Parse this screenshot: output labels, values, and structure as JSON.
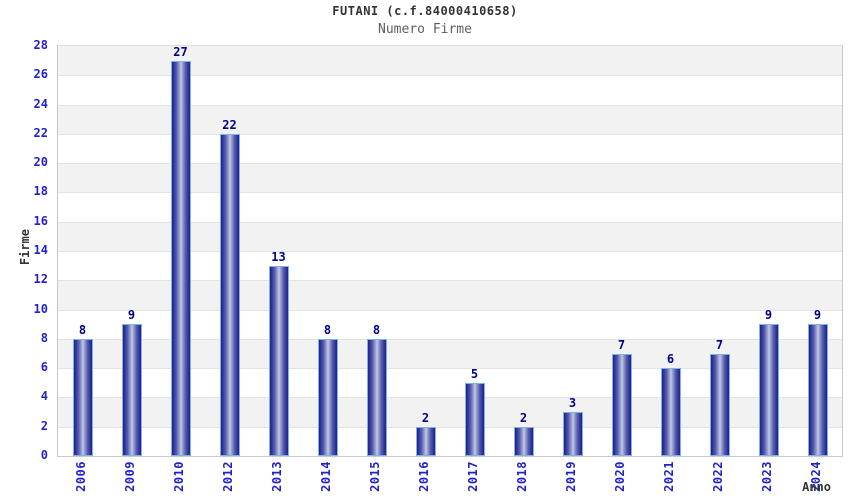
{
  "chart_data": {
    "type": "bar",
    "title": "FUTANI (c.f.84000410658)",
    "subtitle": "Numero Firme",
    "xlabel": "Anno",
    "ylabel": "Firme",
    "categories": [
      "2006",
      "2009",
      "2010",
      "2012",
      "2013",
      "2014",
      "2015",
      "2016",
      "2017",
      "2018",
      "2019",
      "2020",
      "2021",
      "2022",
      "2023",
      "2024"
    ],
    "values": [
      8,
      9,
      27,
      22,
      13,
      8,
      8,
      2,
      5,
      2,
      3,
      7,
      6,
      7,
      9,
      9
    ],
    "ylim": [
      0,
      28
    ],
    "ytick_step": 2,
    "yticks": [
      0,
      2,
      4,
      6,
      8,
      10,
      12,
      14,
      16,
      18,
      20,
      22,
      24,
      26,
      28
    ],
    "legend": "none",
    "grid": "horizontal-bands-alternating",
    "colors": {
      "background": "#ffffff",
      "band_fill": "#f2f2f2",
      "gridline": "#e3e3e3",
      "plot_border": "#c9c9c9",
      "tick_label": "#2222cc",
      "value_label": "#00008b",
      "bar_border": "#7db3e8",
      "bar_edge": "#1f2387",
      "bar_mid": "#555cae",
      "bar_center": "#c4c9e5",
      "title_color": "#333333",
      "subtitle_color": "#5f5f5f",
      "axis_title_color": "#333333"
    }
  }
}
